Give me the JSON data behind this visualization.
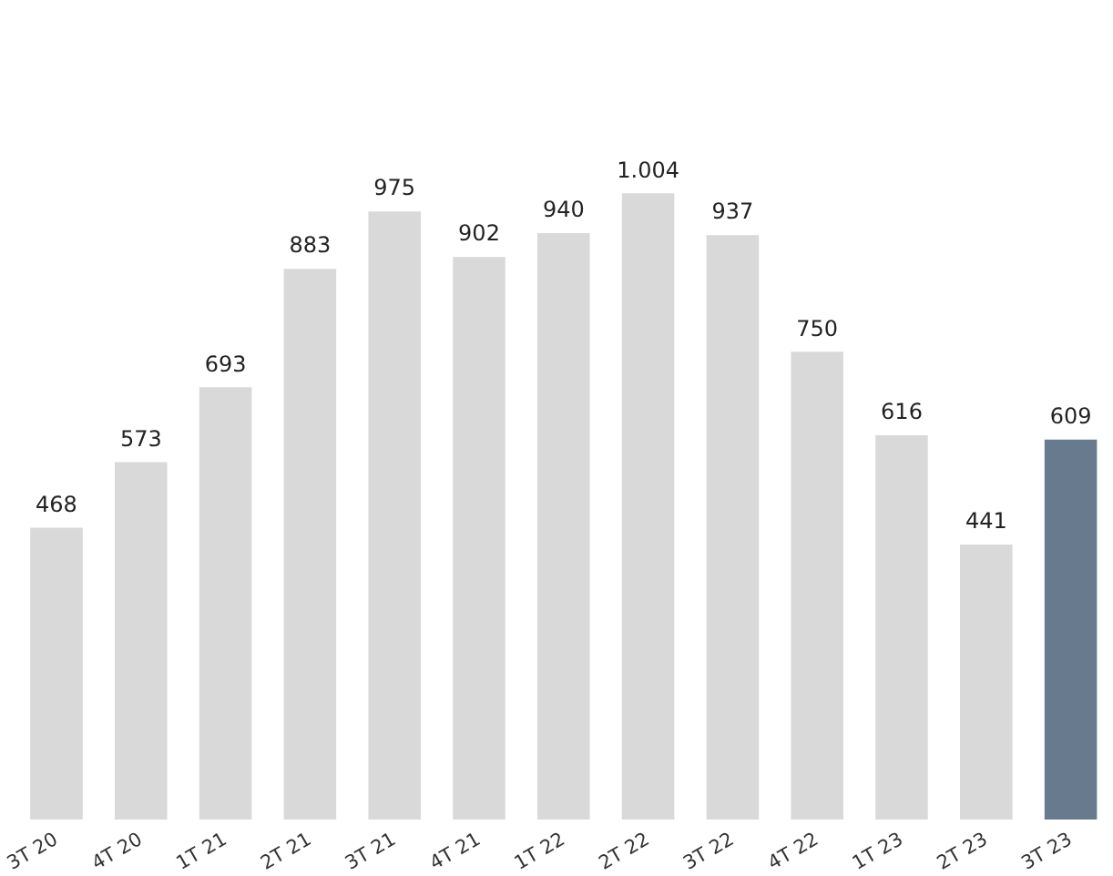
{
  "chart_data": {
    "type": "bar",
    "categories": [
      "3T 20",
      "4T 20",
      "1T 21",
      "2T 21",
      "3T 21",
      "4T 21",
      "1T 22",
      "2T 22",
      "3T 22",
      "4T 22",
      "1T 23",
      "2T 23",
      "3T 23"
    ],
    "values": [
      468,
      573,
      693,
      883,
      975,
      902,
      940,
      1004,
      937,
      750,
      616,
      441,
      609
    ],
    "value_labels": [
      "468",
      "573",
      "693",
      "883",
      "975",
      "902",
      "940",
      "1.004",
      "937",
      "750",
      "616",
      "441",
      "609"
    ],
    "colors": [
      "#d9d9d9",
      "#d9d9d9",
      "#d9d9d9",
      "#d9d9d9",
      "#d9d9d9",
      "#d9d9d9",
      "#d9d9d9",
      "#d9d9d9",
      "#d9d9d9",
      "#d9d9d9",
      "#d9d9d9",
      "#d9d9d9",
      "#687b8e"
    ],
    "grid": false,
    "legend": false,
    "tick_labels": "x"
  }
}
